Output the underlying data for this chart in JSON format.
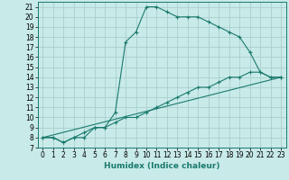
{
  "xlabel": "Humidex (Indice chaleur)",
  "bg_color": "#c8eae8",
  "grid_color": "#aacfcc",
  "line_color": "#1a7a6e",
  "xlim": [
    -0.5,
    23.5
  ],
  "ylim": [
    7,
    21.5
  ],
  "xticks": [
    0,
    1,
    2,
    3,
    4,
    5,
    6,
    7,
    8,
    9,
    10,
    11,
    12,
    13,
    14,
    15,
    16,
    17,
    18,
    19,
    20,
    21,
    22,
    23
  ],
  "yticks": [
    7,
    8,
    9,
    10,
    11,
    12,
    13,
    14,
    15,
    16,
    17,
    18,
    19,
    20,
    21
  ],
  "line1_x": [
    0,
    1,
    2,
    3,
    4,
    5,
    6,
    7,
    8,
    9,
    10,
    11,
    12,
    13,
    14,
    15,
    16,
    17,
    18,
    19,
    20,
    21,
    22,
    23
  ],
  "line1_y": [
    8.0,
    8.0,
    7.5,
    8.0,
    8.0,
    9.0,
    9.0,
    10.5,
    17.5,
    18.5,
    21.0,
    21.0,
    20.5,
    20.0,
    20.0,
    20.0,
    19.5,
    19.0,
    18.5,
    18.0,
    16.5,
    14.5,
    14.0,
    14.0
  ],
  "line2_x": [
    0,
    1,
    2,
    3,
    4,
    5,
    6,
    7,
    8,
    9,
    10,
    11,
    12,
    13,
    14,
    15,
    16,
    17,
    18,
    19,
    20,
    21,
    22,
    23
  ],
  "line2_y": [
    8.0,
    8.0,
    7.5,
    8.0,
    8.5,
    9.0,
    9.0,
    9.5,
    10.0,
    10.0,
    10.5,
    11.0,
    11.5,
    12.0,
    12.5,
    13.0,
    13.0,
    13.5,
    14.0,
    14.0,
    14.5,
    14.5,
    14.0,
    14.0
  ],
  "line3_x": [
    0,
    23
  ],
  "line3_y": [
    8.0,
    14.0
  ],
  "tick_fontsize": 5.5,
  "xlabel_fontsize": 6.5,
  "lw": 0.8,
  "ms": 2.5
}
